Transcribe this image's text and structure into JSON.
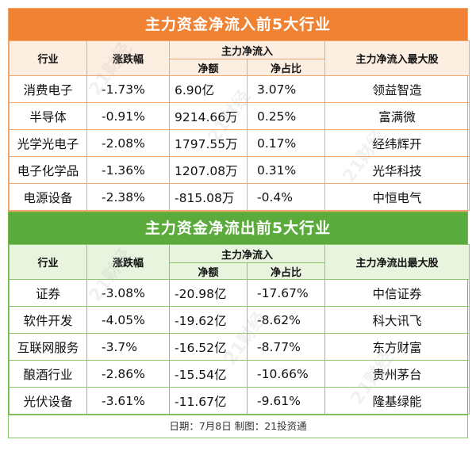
{
  "inflow": {
    "title": "主力资金净流入前5大行业",
    "headers": {
      "industry": "行业",
      "change": "涨跌幅",
      "net_group": "主力净流入",
      "net_amount": "净额",
      "net_ratio": "净占比",
      "top_stock": "主力净流入最大股"
    },
    "rows": [
      {
        "industry": "消费电子",
        "change": "-1.73%",
        "amount": "6.90亿",
        "ratio": "3.07%",
        "stock": "领益智造"
      },
      {
        "industry": "半导体",
        "change": "-0.91%",
        "amount": "9214.66万",
        "ratio": "0.25%",
        "stock": "富满微"
      },
      {
        "industry": "光学光电子",
        "change": "-2.08%",
        "amount": "1797.55万",
        "ratio": "0.17%",
        "stock": "经纬辉开"
      },
      {
        "industry": "电子化学品",
        "change": "-1.36%",
        "amount": "1207.08万",
        "ratio": "0.31%",
        "stock": "光华科技"
      },
      {
        "industry": "电源设备",
        "change": "-2.38%",
        "amount": "-815.08万",
        "ratio": "-0.4%",
        "stock": "中恒电气"
      }
    ]
  },
  "outflow": {
    "title": "主力资金净流出前5大行业",
    "headers": {
      "industry": "行业",
      "change": "涨跌幅",
      "net_group": "主力净流入",
      "net_amount": "净额",
      "net_ratio": "净占比",
      "top_stock": "主力净流出最大股"
    },
    "rows": [
      {
        "industry": "证券",
        "change": "-3.08%",
        "amount": "-20.98亿",
        "ratio": "-17.67%",
        "stock": "中信证券"
      },
      {
        "industry": "软件开发",
        "change": "-4.05%",
        "amount": "-19.62亿",
        "ratio": "-8.62%",
        "stock": "科大讯飞"
      },
      {
        "industry": "互联网服务",
        "change": "-3.7%",
        "amount": "-16.52亿",
        "ratio": "-8.77%",
        "stock": "东方财富"
      },
      {
        "industry": "酿酒行业",
        "change": "-2.86%",
        "amount": "-15.54亿",
        "ratio": "-10.66%",
        "stock": "贵州茅台"
      },
      {
        "industry": "光伏设备",
        "change": "-3.61%",
        "amount": "-11.67亿",
        "ratio": "-9.61%",
        "stock": "隆基绿能"
      }
    ]
  },
  "footer": "日期：7月8日 制图：21投资通",
  "watermark": "21财经",
  "colors": {
    "inflow_accent": "#f08234",
    "outflow_accent": "#5aab3c"
  }
}
